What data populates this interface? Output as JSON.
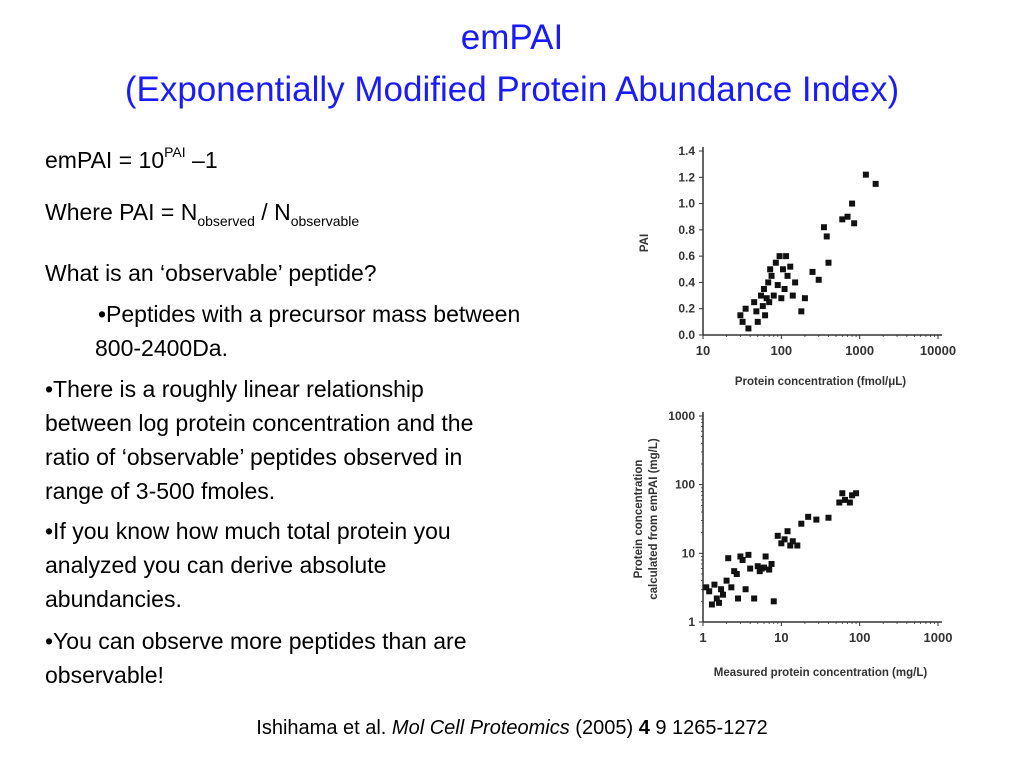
{
  "slide": {
    "title_line1": "emPAI",
    "title_line2": "(Exponentially Modified Protein Abundance Index)",
    "formula": {
      "lhs": "emPAI = 10",
      "sup": "PAI",
      "rhs": " –1"
    },
    "where": {
      "prefix": "Where PAI = N",
      "sub1": "observed",
      "mid": " / N",
      "sub2": "observable"
    },
    "question": "What is an ‘observable’ peptide?",
    "bullet1_line1": "•Peptides with a precursor mass between",
    "bullet1_line2": "800-2400Da.",
    "bullet2": [
      "•There is a roughly linear relationship",
      "between log protein concentration and the",
      "ratio of ‘observable’ peptides observed in",
      "range of 3-500 fmoles."
    ],
    "bullet3": [
      "•If you know how much total protein you",
      "analyzed you can derive absolute",
      "abundancies."
    ],
    "bullet4": [
      "•You can observe more peptides than are",
      "observable!"
    ],
    "citation": {
      "authors": "Ishihama et al. ",
      "journal": "Mol Cell Proteomics",
      "year": " (2005) ",
      "volume": "4",
      "pages": " 9 1265-1272"
    }
  },
  "chart_data": [
    {
      "type": "scatter",
      "xlabel": "Protein concentration (fmol/μL)",
      "ylabel": "PAI",
      "xscale": "log",
      "xlim": [
        10,
        10000
      ],
      "ylim": [
        0,
        1.4
      ],
      "xticks": [
        "10",
        "100",
        "1000",
        "10000"
      ],
      "yticks": [
        "0.0",
        "0.2",
        "0.4",
        "0.6",
        "0.8",
        "1.0",
        "1.2",
        "1.4"
      ],
      "color": "#111111",
      "points": [
        [
          30,
          0.15
        ],
        [
          32,
          0.1
        ],
        [
          35,
          0.2
        ],
        [
          38,
          0.05
        ],
        [
          45,
          0.25
        ],
        [
          48,
          0.18
        ],
        [
          50,
          0.1
        ],
        [
          55,
          0.3
        ],
        [
          58,
          0.22
        ],
        [
          60,
          0.35
        ],
        [
          62,
          0.15
        ],
        [
          65,
          0.28
        ],
        [
          68,
          0.4
        ],
        [
          70,
          0.25
        ],
        [
          72,
          0.5
        ],
        [
          75,
          0.45
        ],
        [
          80,
          0.3
        ],
        [
          85,
          0.55
        ],
        [
          90,
          0.38
        ],
        [
          95,
          0.6
        ],
        [
          100,
          0.28
        ],
        [
          105,
          0.5
        ],
        [
          110,
          0.35
        ],
        [
          115,
          0.6
        ],
        [
          120,
          0.45
        ],
        [
          130,
          0.52
        ],
        [
          140,
          0.3
        ],
        [
          150,
          0.4
        ],
        [
          180,
          0.18
        ],
        [
          200,
          0.28
        ],
        [
          250,
          0.48
        ],
        [
          300,
          0.42
        ],
        [
          350,
          0.82
        ],
        [
          380,
          0.75
        ],
        [
          400,
          0.55
        ],
        [
          600,
          0.88
        ],
        [
          700,
          0.9
        ],
        [
          800,
          1.0
        ],
        [
          850,
          0.85
        ],
        [
          1200,
          1.22
        ],
        [
          1600,
          1.15
        ]
      ]
    },
    {
      "type": "scatter",
      "xlabel": "Measured protein concentration (mg/L)",
      "ylabel": "Protein concentration calculated from emPAI (mg/L)",
      "xscale": "log",
      "yscale": "log",
      "xlim": [
        1,
        1000
      ],
      "ylim": [
        1,
        1000
      ],
      "xticks": [
        "1",
        "10",
        "100",
        "1000"
      ],
      "yticks": [
        "1",
        "10",
        "100",
        "1000"
      ],
      "color": "#111111",
      "points": [
        [
          1.1,
          3.2
        ],
        [
          1.2,
          2.8
        ],
        [
          1.3,
          1.8
        ],
        [
          1.4,
          3.5
        ],
        [
          1.5,
          2.2
        ],
        [
          1.6,
          1.9
        ],
        [
          1.7,
          3.0
        ],
        [
          1.8,
          2.5
        ],
        [
          2.0,
          4.0
        ],
        [
          2.1,
          8.5
        ],
        [
          2.3,
          3.2
        ],
        [
          2.5,
          5.5
        ],
        [
          2.7,
          5.0
        ],
        [
          2.8,
          2.2
        ],
        [
          3.0,
          9.0
        ],
        [
          3.2,
          8.0
        ],
        [
          3.5,
          3.0
        ],
        [
          3.8,
          9.5
        ],
        [
          4.0,
          6.0
        ],
        [
          4.5,
          2.2
        ],
        [
          5.0,
          6.5
        ],
        [
          5.3,
          5.5
        ],
        [
          5.6,
          6.0
        ],
        [
          6.0,
          6.2
        ],
        [
          6.3,
          9.0
        ],
        [
          7.0,
          5.8
        ],
        [
          7.5,
          7.0
        ],
        [
          8.0,
          2.0
        ],
        [
          9.0,
          18
        ],
        [
          10,
          14
        ],
        [
          11,
          16
        ],
        [
          12,
          21
        ],
        [
          13,
          13
        ],
        [
          14,
          15
        ],
        [
          16,
          13
        ],
        [
          18,
          27
        ],
        [
          22,
          34
        ],
        [
          28,
          31
        ],
        [
          40,
          33
        ],
        [
          55,
          55
        ],
        [
          60,
          75
        ],
        [
          65,
          60
        ],
        [
          75,
          55
        ],
        [
          80,
          70
        ],
        [
          90,
          75
        ]
      ]
    }
  ]
}
